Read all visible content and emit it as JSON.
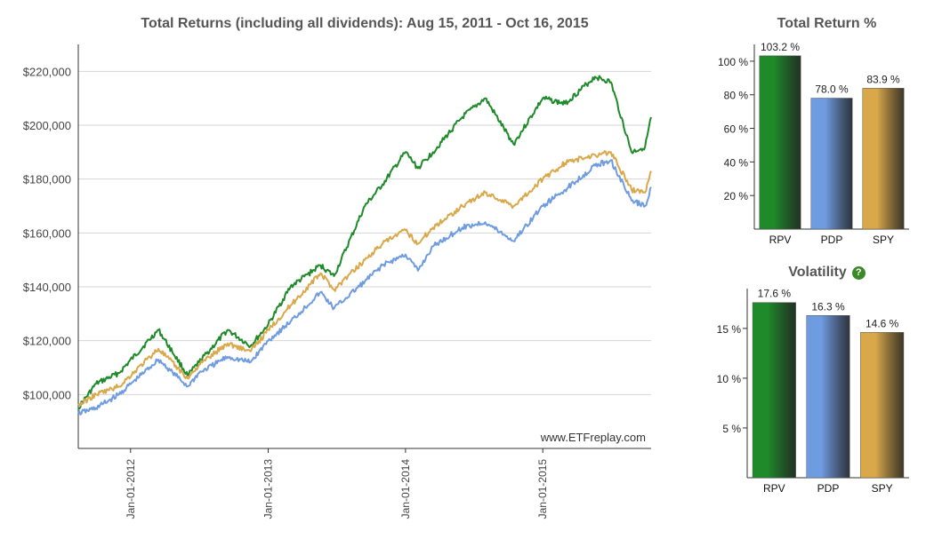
{
  "main_chart": {
    "title": "Total Returns (including all dividends): Aug 15, 2011 - Oct 16, 2015",
    "watermark": "www.ETFreplay.com",
    "y_ticks": [
      "$100,000",
      "$120,000",
      "$140,000",
      "$160,000",
      "$180,000",
      "$200,000",
      "$220,000"
    ],
    "x_ticks": [
      "Jan-01-2012",
      "Jan-01-2013",
      "Jan-01-2014",
      "Jan-01-2015"
    ]
  },
  "chart_data": [
    {
      "type": "line",
      "title": "Total Returns (including all dividends): Aug 15, 2011 - Oct 16, 2015",
      "xlabel": "",
      "ylabel": "",
      "xlim": [
        "2011-08-15",
        "2015-10-16"
      ],
      "ylim": [
        80000,
        230000
      ],
      "grid": true,
      "x_tick_labels": [
        "Jan-01-2012",
        "Jan-01-2013",
        "Jan-01-2014",
        "Jan-01-2015"
      ],
      "y_tick_labels": [
        "$100,000",
        "$120,000",
        "$140,000",
        "$160,000",
        "$180,000",
        "$200,000",
        "$220,000"
      ],
      "x": [
        "2011-08-15",
        "2011-10-01",
        "2011-12-01",
        "2012-03-15",
        "2012-06-01",
        "2012-07-01",
        "2012-09-15",
        "2012-11-15",
        "2013-01-01",
        "2013-03-01",
        "2013-05-20",
        "2013-06-25",
        "2013-09-15",
        "2013-11-01",
        "2014-01-01",
        "2014-02-03",
        "2014-03-15",
        "2014-06-01",
        "2014-08-01",
        "2014-10-15",
        "2015-01-01",
        "2015-03-01",
        "2015-05-20",
        "2015-07-01",
        "2015-08-25",
        "2015-09-30",
        "2015-10-16"
      ],
      "series": [
        {
          "name": "RPV",
          "color": "#1f8a2a",
          "values": [
            95000,
            104000,
            108000,
            124000,
            107000,
            112000,
            124000,
            118000,
            126000,
            140000,
            148000,
            144000,
            170000,
            178000,
            190000,
            184000,
            190000,
            203000,
            210000,
            193000,
            210000,
            208000,
            218000,
            216000,
            190000,
            192000,
            203000
          ]
        },
        {
          "name": "PDP",
          "color": "#6f9be0",
          "values": [
            93000,
            95000,
            100000,
            113000,
            103000,
            108000,
            114000,
            112000,
            120000,
            127000,
            138000,
            132000,
            142000,
            148000,
            152000,
            146000,
            155000,
            162000,
            164000,
            157000,
            170000,
            176000,
            185000,
            187000,
            172000,
            170000,
            177000
          ]
        },
        {
          "name": "SPY",
          "color": "#d9a84a",
          "values": [
            96000,
            100000,
            103000,
            117000,
            106000,
            111000,
            119000,
            116000,
            124000,
            133000,
            145000,
            139000,
            150000,
            156000,
            161000,
            156000,
            162000,
            170000,
            175000,
            170000,
            180000,
            186000,
            189000,
            190000,
            176000,
            175000,
            183000
          ]
        }
      ]
    },
    {
      "type": "bar",
      "title": "Total Return %",
      "categories": [
        "RPV",
        "PDP",
        "SPY"
      ],
      "values": [
        103.2,
        78.0,
        83.9
      ],
      "value_labels": [
        "103.2 %",
        "78.0 %",
        "83.9 %"
      ],
      "y_tick_labels": [
        "20 %",
        "40 %",
        "60 %",
        "80 %",
        "100 %"
      ],
      "ylim": [
        0,
        110
      ],
      "colors": [
        "#1f8a2a",
        "#6f9be0",
        "#d9a84a"
      ]
    },
    {
      "type": "bar",
      "title": "Volatility",
      "categories": [
        "RPV",
        "PDP",
        "SPY"
      ],
      "values": [
        17.6,
        16.3,
        14.6
      ],
      "value_labels": [
        "17.6 %",
        "16.3 %",
        "14.6 %"
      ],
      "y_tick_labels": [
        "5 %",
        "10 %",
        "15 %"
      ],
      "ylim": [
        0,
        19
      ],
      "colors": [
        "#1f8a2a",
        "#6f9be0",
        "#d9a84a"
      ]
    }
  ],
  "returns_panel": {
    "title": "Total Return %"
  },
  "volatility_panel": {
    "title": "Volatility",
    "help_icon": "question-circle-icon"
  }
}
